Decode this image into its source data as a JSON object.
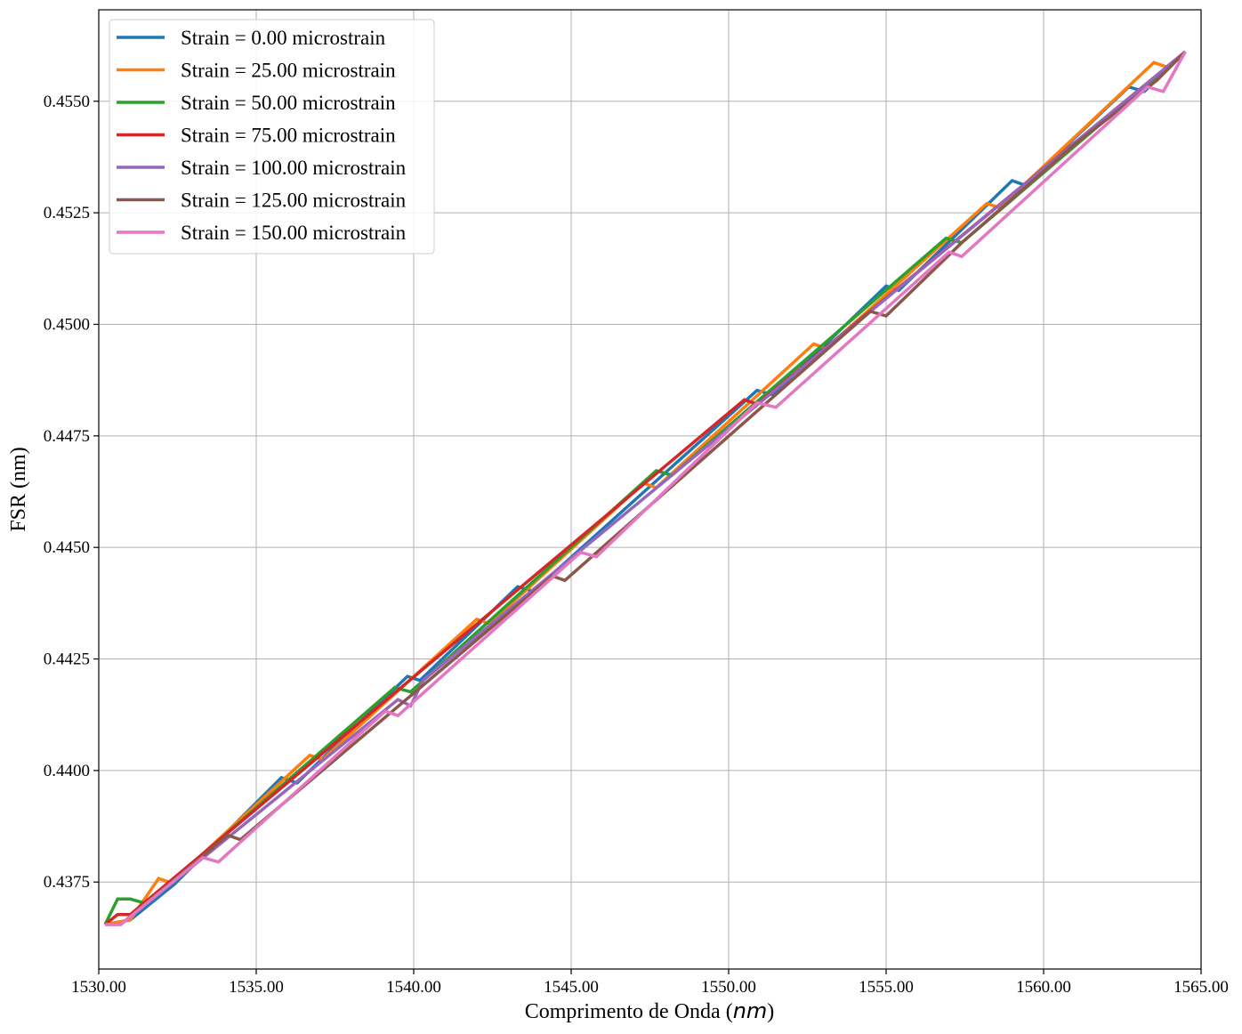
{
  "chart_data": {
    "type": "line",
    "title": "",
    "xlabel": "Comprimento de Onda",
    "xlabel_unit": "nm",
    "ylabel": "FSR (nm)",
    "xlim": [
      1530,
      1565
    ],
    "ylim": [
      0.43555,
      0.45705
    ],
    "x_ticks": [
      1530,
      1535,
      1540,
      1545,
      1550,
      1555,
      1560,
      1565
    ],
    "x_tick_labels": [
      "1530.00",
      "1535.00",
      "1540.00",
      "1545.00",
      "1550.00",
      "1555.00",
      "1560.00",
      "1565.00"
    ],
    "y_ticks": [
      0.4375,
      0.44,
      0.4425,
      0.445,
      0.4475,
      0.45,
      0.4525,
      0.455
    ],
    "y_tick_labels": [
      "0.4375",
      "0.4400",
      "0.4425",
      "0.4450",
      "0.4475",
      "0.4500",
      "0.4525",
      "0.4550"
    ],
    "grid": true,
    "legend_position": "top-left",
    "series": [
      {
        "name": "Strain = 0.00 microstrain",
        "color": "#1f77b4",
        "x": [
          1530.2,
          1531.0,
          1532.4,
          1535.8,
          1536.3,
          1539.8,
          1540.2,
          1543.3,
          1543.8,
          1550.9,
          1551.4,
          1555.0,
          1555.4,
          1559.0,
          1559.4,
          1562.7,
          1563.2,
          1564.5
        ],
        "y": [
          0.43655,
          0.43665,
          0.43745,
          0.43984,
          0.43972,
          0.44211,
          0.44202,
          0.44412,
          0.44402,
          0.44852,
          0.44842,
          0.45086,
          0.45076,
          0.45322,
          0.45312,
          0.45532,
          0.45522,
          0.45611
        ]
      },
      {
        "name": "Strain = 25.00 microstrain",
        "color": "#ff7f0e",
        "x": [
          1530.2,
          1531.0,
          1531.9,
          1532.3,
          1536.7,
          1537.1,
          1542.0,
          1542.4,
          1547.3,
          1547.7,
          1552.7,
          1553.1,
          1558.2,
          1558.6,
          1563.5,
          1563.9,
          1564.5
        ],
        "y": [
          0.43655,
          0.43665,
          0.43758,
          0.43748,
          0.44034,
          0.44024,
          0.44339,
          0.44329,
          0.44644,
          0.44634,
          0.44956,
          0.44946,
          0.45271,
          0.45261,
          0.45587,
          0.45577,
          0.45611
        ]
      },
      {
        "name": "Strain = 50.00 microstrain",
        "color": "#2ca02c",
        "x": [
          1530.2,
          1530.6,
          1531.0,
          1531.5,
          1539.4,
          1539.9,
          1547.7,
          1548.2,
          1556.9,
          1557.4,
          1564.5
        ],
        "y": [
          0.43655,
          0.43712,
          0.43712,
          0.43702,
          0.44186,
          0.44176,
          0.44672,
          0.44662,
          0.45193,
          0.45183,
          0.45611
        ]
      },
      {
        "name": "Strain = 75.00 microstrain",
        "color": "#d62728",
        "x": [
          1530.2,
          1530.6,
          1531.0,
          1550.5,
          1550.9,
          1564.5
        ],
        "y": [
          0.43655,
          0.43677,
          0.43677,
          0.44831,
          0.44821,
          0.45611
        ]
      },
      {
        "name": "Strain = 100.00 microstrain",
        "color": "#9467bd",
        "x": [
          1530.2,
          1530.7,
          1539.5,
          1539.9,
          1540.3,
          1564.5
        ],
        "y": [
          0.43655,
          0.43655,
          0.44159,
          0.44145,
          0.44202,
          0.45611
        ]
      },
      {
        "name": "Strain = 125.00 microstrain",
        "color": "#8c564b",
        "x": [
          1530.2,
          1530.7,
          1534.1,
          1534.5,
          1544.4,
          1544.8,
          1554.5,
          1555.0,
          1557.4,
          1561.0,
          1563.6,
          1564.5
        ],
        "y": [
          0.43655,
          0.43655,
          0.43855,
          0.43845,
          0.44436,
          0.44426,
          0.45029,
          0.45019,
          0.45183,
          0.45404,
          0.45547,
          0.45611
        ]
      },
      {
        "name": "Strain = 150.00 microstrain",
        "color": "#e377c2",
        "x": [
          1530.2,
          1530.7,
          1533.3,
          1533.8,
          1539.1,
          1539.5,
          1545.3,
          1545.8,
          1550.9,
          1551.5,
          1557.0,
          1557.4,
          1563.3,
          1563.8,
          1564.5
        ],
        "y": [
          0.43655,
          0.43655,
          0.43805,
          0.43795,
          0.44133,
          0.44123,
          0.44489,
          0.44479,
          0.44824,
          0.44814,
          0.45162,
          0.45152,
          0.45532,
          0.45522,
          0.45611
        ]
      }
    ]
  }
}
